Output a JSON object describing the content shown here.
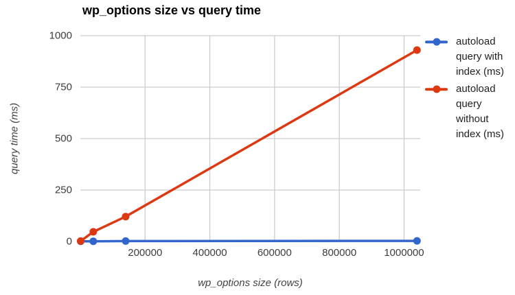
{
  "chart": {
    "title": "wp_options size vs query time",
    "x_axis_title": "wp_options size (rows)",
    "y_axis_title": "query time (ms)"
  },
  "legend": {
    "items": [
      {
        "label": "autoload query with index (ms)",
        "color": "#3366cc"
      },
      {
        "label": "autoload query without index (ms)",
        "color": "#dc3912"
      }
    ]
  },
  "chart_data": {
    "type": "line",
    "title": "wp_options size vs query time",
    "xlabel": "wp_options size (rows)",
    "ylabel": "query time (ms)",
    "x": [
      1000,
      40000,
      140000,
      1040000
    ],
    "series": [
      {
        "name": "autoload query with index (ms)",
        "slug": "with-index",
        "color": "#3366cc",
        "values": [
          1,
          1,
          2,
          3
        ]
      },
      {
        "name": "autoload query without index (ms)",
        "slug": "without-index",
        "color": "#dc3912",
        "values": [
          2,
          47,
          121,
          930
        ]
      }
    ],
    "x_axis": {
      "min": 0,
      "max": 1050000
    },
    "y_axis": {
      "min": 0,
      "max": 1000
    },
    "x_ticks": {
      "values": [
        200000,
        400000,
        600000,
        800000,
        1000000
      ],
      "labels": [
        "200000",
        "400000",
        "600000",
        "800000",
        "1000000"
      ]
    },
    "y_ticks": {
      "values": [
        0,
        250,
        500,
        750,
        1000
      ],
      "labels": [
        "0",
        "250",
        "500",
        "750",
        "1000"
      ]
    },
    "grid": true,
    "legend_position": "right",
    "colors": {
      "gridline": "#cccccc",
      "tick_label": "#3c3c3c",
      "title": "#000000",
      "axis_title": "#424242",
      "legend_text": "#212121",
      "background": "#ffffff"
    }
  }
}
